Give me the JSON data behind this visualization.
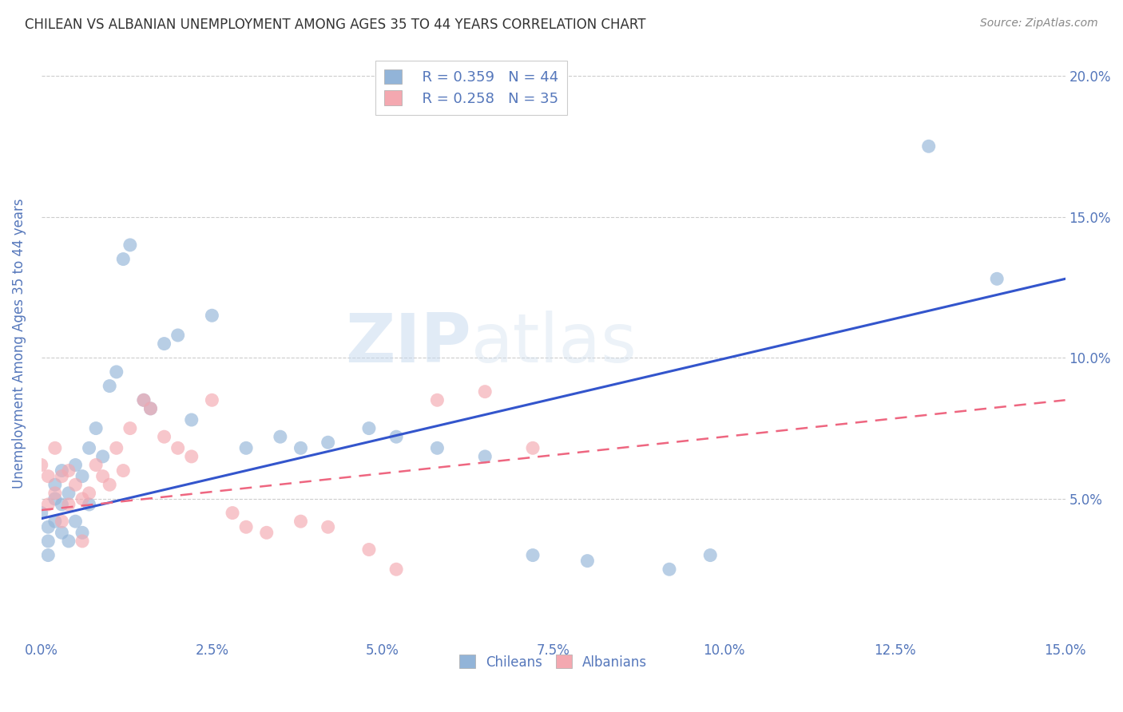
{
  "title": "CHILEAN VS ALBANIAN UNEMPLOYMENT AMONG AGES 35 TO 44 YEARS CORRELATION CHART",
  "source": "Source: ZipAtlas.com",
  "ylabel": "Unemployment Among Ages 35 to 44 years",
  "xlim": [
    0.0,
    0.15
  ],
  "ylim": [
    0.0,
    0.21
  ],
  "ytick_positions": [
    0.05,
    0.1,
    0.15,
    0.2
  ],
  "ytick_labels": [
    "5.0%",
    "10.0%",
    "15.0%",
    "20.0%"
  ],
  "xtick_positions": [
    0.0,
    0.025,
    0.05,
    0.075,
    0.1,
    0.125,
    0.15
  ],
  "xtick_labels": [
    "0.0%",
    "2.5%",
    "5.0%",
    "7.5%",
    "10.0%",
    "12.5%",
    "15.0%"
  ],
  "legend_r_chileans": "R = 0.359",
  "legend_n_chileans": "N = 44",
  "legend_r_albanians": "R = 0.258",
  "legend_n_albanians": "N = 35",
  "color_chileans": "#92b4d8",
  "color_albanians": "#f4a8b0",
  "color_axis_labels": "#5577bb",
  "color_trendline_chileans": "#3355cc",
  "color_trendline_albanians": "#ee6680",
  "watermark_zip": "ZIP",
  "watermark_atlas": "atlas",
  "chileans_x": [
    0.0,
    0.001,
    0.001,
    0.001,
    0.002,
    0.002,
    0.002,
    0.003,
    0.003,
    0.003,
    0.004,
    0.004,
    0.005,
    0.005,
    0.006,
    0.006,
    0.007,
    0.007,
    0.008,
    0.009,
    0.01,
    0.011,
    0.012,
    0.013,
    0.015,
    0.016,
    0.018,
    0.02,
    0.022,
    0.025,
    0.03,
    0.035,
    0.038,
    0.042,
    0.048,
    0.052,
    0.058,
    0.065,
    0.072,
    0.08,
    0.092,
    0.098,
    0.13,
    0.14
  ],
  "chileans_y": [
    0.045,
    0.04,
    0.035,
    0.03,
    0.055,
    0.05,
    0.042,
    0.06,
    0.048,
    0.038,
    0.052,
    0.035,
    0.062,
    0.042,
    0.058,
    0.038,
    0.068,
    0.048,
    0.075,
    0.065,
    0.09,
    0.095,
    0.135,
    0.14,
    0.085,
    0.082,
    0.105,
    0.108,
    0.078,
    0.115,
    0.068,
    0.072,
    0.068,
    0.07,
    0.075,
    0.072,
    0.068,
    0.065,
    0.03,
    0.028,
    0.025,
    0.03,
    0.175,
    0.128
  ],
  "albanians_x": [
    0.0,
    0.001,
    0.001,
    0.002,
    0.002,
    0.003,
    0.003,
    0.004,
    0.004,
    0.005,
    0.006,
    0.006,
    0.007,
    0.008,
    0.009,
    0.01,
    0.011,
    0.012,
    0.013,
    0.015,
    0.016,
    0.018,
    0.02,
    0.022,
    0.025,
    0.028,
    0.03,
    0.033,
    0.038,
    0.042,
    0.048,
    0.052,
    0.058,
    0.065,
    0.072
  ],
  "albanians_y": [
    0.062,
    0.058,
    0.048,
    0.068,
    0.052,
    0.058,
    0.042,
    0.06,
    0.048,
    0.055,
    0.05,
    0.035,
    0.052,
    0.062,
    0.058,
    0.055,
    0.068,
    0.06,
    0.075,
    0.085,
    0.082,
    0.072,
    0.068,
    0.065,
    0.085,
    0.045,
    0.04,
    0.038,
    0.042,
    0.04,
    0.032,
    0.025,
    0.085,
    0.088,
    0.068
  ],
  "trendline_chileans": [
    0.0,
    0.043,
    0.15,
    0.128
  ],
  "trendline_albanians": [
    0.0,
    0.046,
    0.15,
    0.085
  ]
}
